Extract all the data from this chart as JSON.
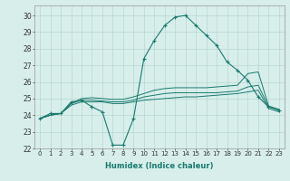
{
  "xlabel": "Humidex (Indice chaleur)",
  "bg_color": "#d7eeeb",
  "grid_color": "#b8d8d4",
  "line_color": "#1a7a6e",
  "xlim": [
    -0.5,
    23.5
  ],
  "ylim": [
    22,
    30.6
  ],
  "yticks": [
    22,
    23,
    24,
    25,
    26,
    27,
    28,
    29,
    30
  ],
  "xticks": [
    0,
    1,
    2,
    3,
    4,
    5,
    6,
    7,
    8,
    9,
    10,
    11,
    12,
    13,
    14,
    15,
    16,
    17,
    18,
    19,
    20,
    21,
    22,
    23
  ],
  "series_with_markers": [
    23.8,
    24.1,
    24.1,
    24.8,
    24.9,
    24.5,
    24.2,
    22.2,
    22.2,
    23.8,
    27.4,
    28.5,
    29.4,
    29.9,
    30.0,
    29.4,
    28.8,
    28.2,
    27.2,
    26.7,
    26.1,
    25.1,
    24.5,
    24.3
  ],
  "series_smooth": [
    [
      23.8,
      24.0,
      24.1,
      24.6,
      24.8,
      24.8,
      24.8,
      24.7,
      24.7,
      24.8,
      24.9,
      24.95,
      25.0,
      25.05,
      25.1,
      25.1,
      25.15,
      25.2,
      25.25,
      25.3,
      25.4,
      25.5,
      24.4,
      24.2
    ],
    [
      23.8,
      24.0,
      24.1,
      24.7,
      24.9,
      24.9,
      24.85,
      24.8,
      24.8,
      24.9,
      25.1,
      25.2,
      25.3,
      25.35,
      25.35,
      25.35,
      25.35,
      25.35,
      25.4,
      25.45,
      25.7,
      25.8,
      24.5,
      24.3
    ],
    [
      23.8,
      24.0,
      24.1,
      24.7,
      25.0,
      25.05,
      25.0,
      24.95,
      24.95,
      25.1,
      25.3,
      25.5,
      25.6,
      25.65,
      25.65,
      25.65,
      25.65,
      25.7,
      25.75,
      25.8,
      26.5,
      26.6,
      24.55,
      24.35
    ]
  ]
}
